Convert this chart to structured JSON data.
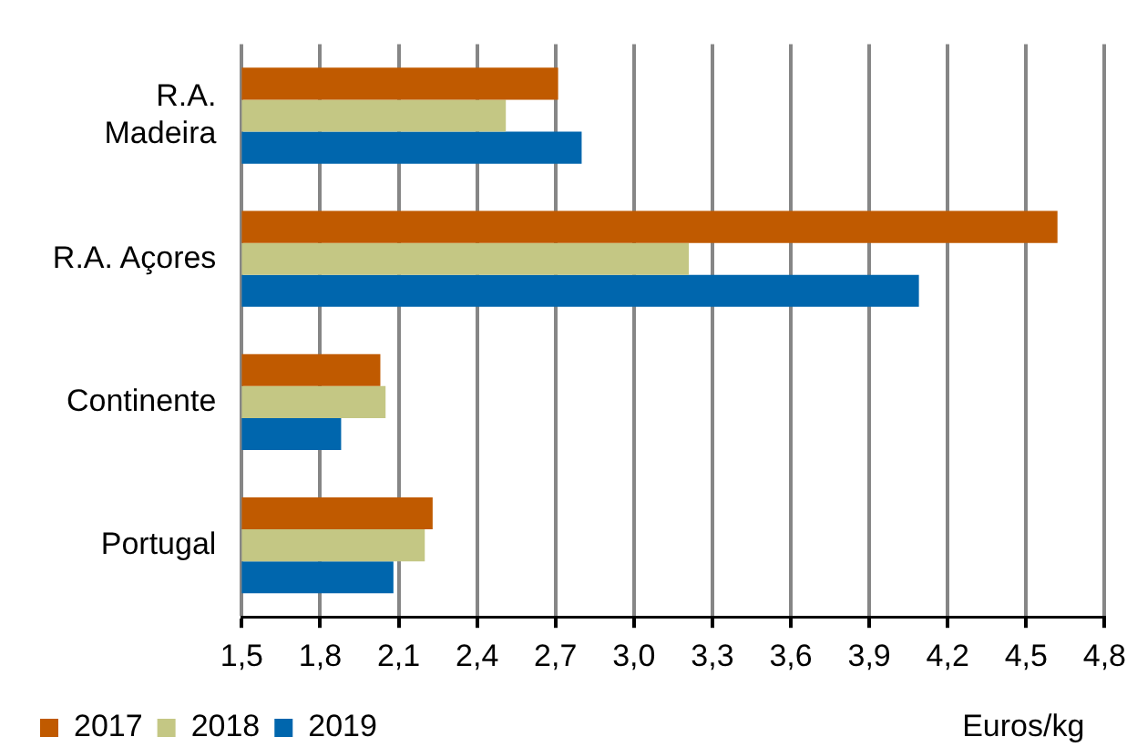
{
  "chart_data": {
    "type": "bar",
    "orientation": "horizontal",
    "categories": [
      "R.A. Madeira",
      "R.A. Açores",
      "Continente",
      "Portugal"
    ],
    "series": [
      {
        "name": "2017",
        "color": "#c05a00",
        "values": [
          2.71,
          4.62,
          2.03,
          2.23
        ]
      },
      {
        "name": "2018",
        "color": "#c4c784",
        "values": [
          2.51,
          3.21,
          2.05,
          2.2
        ]
      },
      {
        "name": "2019",
        "color": "#0066ad",
        "values": [
          2.8,
          4.09,
          1.88,
          2.08
        ]
      }
    ],
    "xlabel": "Euros/kg",
    "xlim": [
      1.5,
      4.8
    ],
    "xticks": [
      {
        "value": 1.5,
        "label": "1,5"
      },
      {
        "value": 1.8,
        "label": "1,8"
      },
      {
        "value": 2.1,
        "label": "2,1"
      },
      {
        "value": 2.4,
        "label": "2,4"
      },
      {
        "value": 2.7,
        "label": "2,7"
      },
      {
        "value": 3.0,
        "label": "3,0"
      },
      {
        "value": 3.3,
        "label": "3,3"
      },
      {
        "value": 3.6,
        "label": "3,6"
      },
      {
        "value": 3.9,
        "label": "3,9"
      },
      {
        "value": 4.2,
        "label": "4,2"
      },
      {
        "value": 4.5,
        "label": "4,5"
      },
      {
        "value": 4.8,
        "label": "4,8"
      }
    ],
    "grid": "x",
    "legend": "bottom left"
  }
}
